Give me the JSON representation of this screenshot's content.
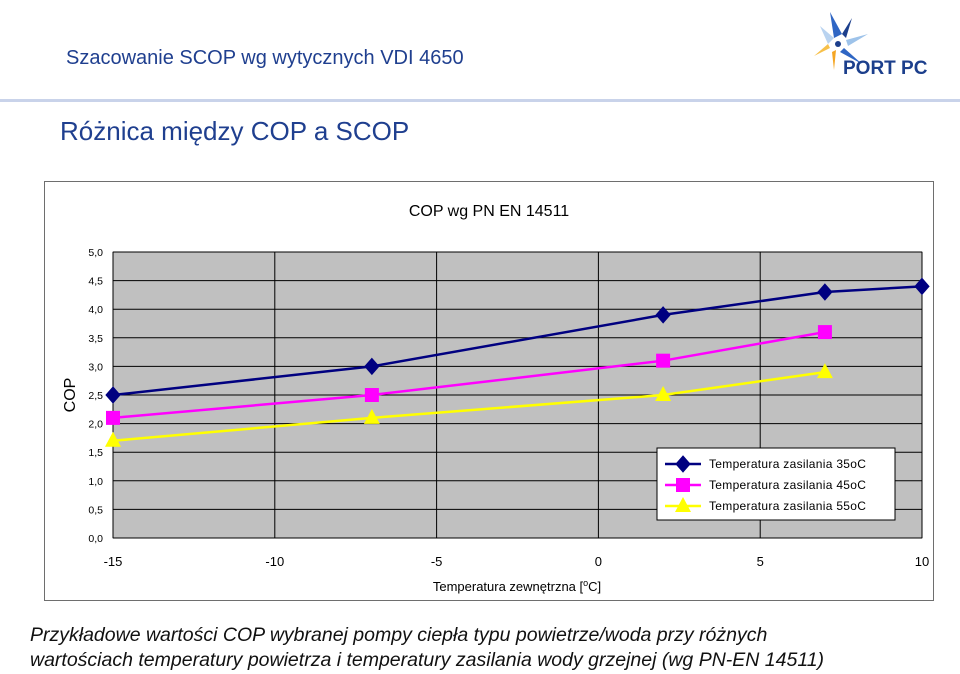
{
  "header": {
    "title": "Szacowanie SCOP wg wytycznych VDI 4650",
    "logo_text": "PORT PC"
  },
  "slide_title": "Różnica między COP a SCOP",
  "chart_data": {
    "type": "line",
    "title": "COP wg PN EN 14511",
    "ylabel": "COP",
    "xlabel": "Temperatura zewnętrzna [°C]",
    "xlabel_parts": [
      "Temperatura zewnętrzna [",
      "o",
      "C]"
    ],
    "xlim": [
      -15,
      10
    ],
    "ylim": [
      0,
      5
    ],
    "xticks": [
      -15,
      -10,
      -5,
      0,
      5,
      10
    ],
    "xtick_labels": [
      "-15",
      "-10",
      "-5",
      "0",
      "5",
      "10"
    ],
    "yticks": [
      0,
      0.5,
      1,
      1.5,
      2,
      2.5,
      3,
      3.5,
      4,
      4.5,
      5
    ],
    "ytick_labels": [
      "0,0",
      "0,5",
      "1,0",
      "1,5",
      "2,0",
      "2,5",
      "3,0",
      "3,5",
      "4,0",
      "4,5",
      "5,0"
    ],
    "grid": true,
    "plot_background": "#c0c0c0",
    "legend_position": "bottom-right",
    "series": [
      {
        "name": "Temperatura zasilania 35oC",
        "color": "#000080",
        "marker": "diamond",
        "x": [
          -15,
          -7,
          2,
          7,
          10
        ],
        "values": [
          2.5,
          3.0,
          3.9,
          4.3,
          4.4
        ]
      },
      {
        "name": "Temperatura zasilania 45oC",
        "color": "#ff00ff",
        "marker": "square",
        "x": [
          -15,
          -7,
          2,
          7
        ],
        "values": [
          2.1,
          2.5,
          3.1,
          3.6
        ]
      },
      {
        "name": "Temperatura zasilania 55oC",
        "color": "#ffff00",
        "marker": "triangle",
        "x": [
          -15,
          -7,
          2,
          7
        ],
        "values": [
          1.7,
          2.1,
          2.5,
          2.9
        ]
      }
    ]
  },
  "caption": {
    "line1": "Przykładowe wartości COP wybranej pompy ciepła typu powietrze/woda przy  różnych",
    "line2": "wartościach temperatury powietrza i temperatury zasilania wody grzejnej (wg PN-EN 14511)"
  },
  "colors": {
    "brand_blue": "#1f3f8f",
    "logo_blue": "#1c3f8c",
    "logo_orange": "#f5a623",
    "logo_light_blue": "#9ec3ea"
  }
}
